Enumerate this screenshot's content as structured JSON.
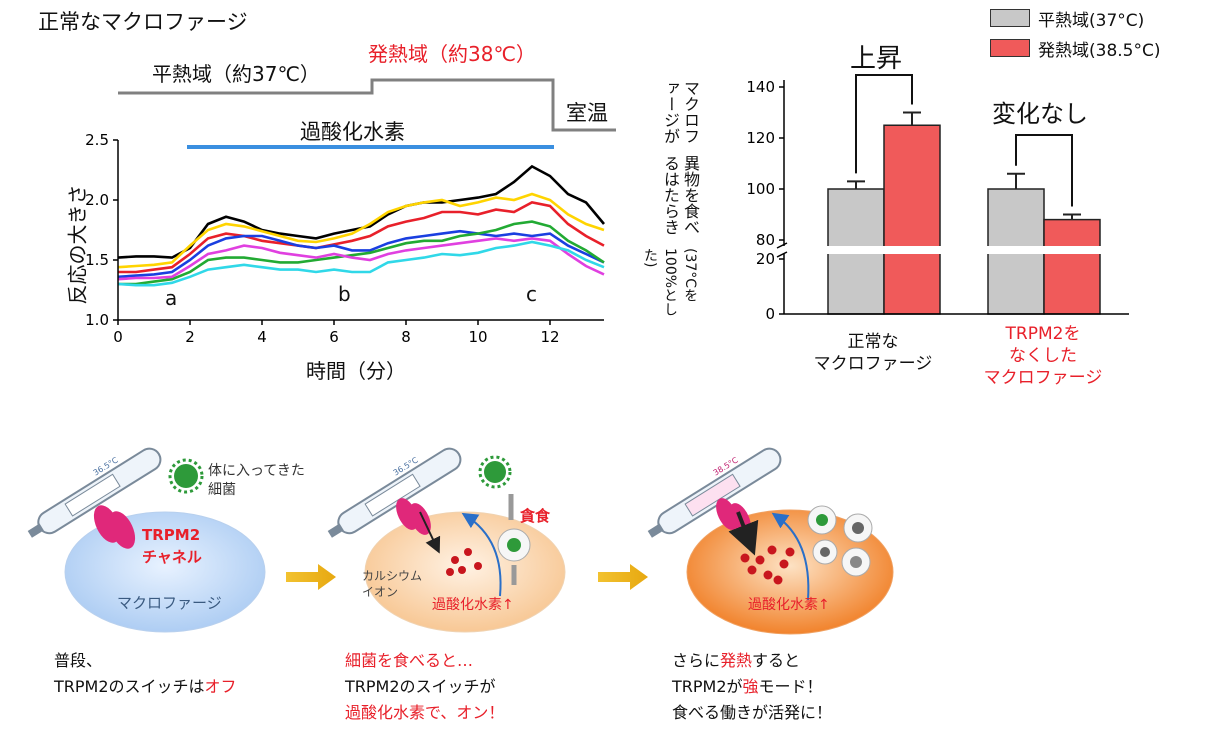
{
  "colors": {
    "gray_bar": "#c8c8c8",
    "red_bar": "#f05a5a",
    "accent_red": "#e8202a",
    "h2o2_bar": "#3a8fe0",
    "protocol_line": "#808080"
  },
  "line_chart": {
    "title": "正常なマクロファージ",
    "protocol": {
      "normal": "平熱域（約37℃）",
      "fever": "発熱域（約38℃）",
      "room": "室温",
      "h2o2": "過酸化水素"
    },
    "markers": [
      "a",
      "b",
      "c"
    ],
    "ylabel": "反応の大きさ",
    "xlabel": "時間（分）",
    "xticks": [
      "0",
      "2",
      "4",
      "6",
      "8",
      "10",
      "12"
    ],
    "yticks": [
      "1.0",
      "1.5",
      "2.0",
      "2.5"
    ]
  },
  "bar_chart": {
    "legend": [
      {
        "label": "平熱域(37°C)",
        "color": "#c8c8c8"
      },
      {
        "label": "発熱域(38.5°C)",
        "color": "#f05a5a"
      }
    ],
    "ylabel_line1": "マクロファージが",
    "ylabel_line2": "異物を食べるはたらき",
    "ylabel_line3": "(37°Cを100%とした)",
    "yticks": [
      "0",
      "20",
      "80",
      "100",
      "120",
      "140"
    ],
    "annot_up": "上昇",
    "annot_nochange": "変化なし",
    "cat1_line1": "正常な",
    "cat1_line2": "マクロファージ",
    "cat2_line1": "TRPM2を",
    "cat2_line2": "なくした",
    "cat2_line3": "マクロファージ"
  },
  "chart_data": [
    {
      "type": "line",
      "title": "正常なマクロファージ",
      "xlabel": "時間（分）",
      "ylabel": "反応の大きさ",
      "xlim": [
        0,
        13.5
      ],
      "ylim": [
        1.0,
        2.5
      ],
      "x": [
        0,
        0.5,
        1,
        1.5,
        2,
        2.5,
        3,
        3.5,
        4,
        4.5,
        5,
        5.5,
        6,
        6.5,
        7,
        7.5,
        8,
        8.5,
        9,
        9.5,
        10,
        10.5,
        11,
        11.5,
        12,
        12.5,
        13,
        13.5
      ],
      "series": [
        {
          "color": "#000000",
          "values": [
            1.52,
            1.53,
            1.53,
            1.52,
            1.6,
            1.8,
            1.86,
            1.82,
            1.75,
            1.72,
            1.7,
            1.68,
            1.72,
            1.75,
            1.78,
            1.88,
            1.95,
            1.98,
            1.98,
            2.0,
            2.02,
            2.05,
            2.15,
            2.28,
            2.2,
            2.05,
            1.98,
            1.8
          ]
        },
        {
          "color": "#ffd400",
          "values": [
            1.44,
            1.45,
            1.46,
            1.48,
            1.62,
            1.75,
            1.8,
            1.78,
            1.74,
            1.7,
            1.66,
            1.65,
            1.68,
            1.72,
            1.8,
            1.9,
            1.95,
            1.98,
            2.0,
            1.95,
            1.98,
            2.02,
            2.0,
            2.05,
            2.0,
            1.88,
            1.8,
            1.75
          ]
        },
        {
          "color": "#e8202a",
          "values": [
            1.4,
            1.4,
            1.42,
            1.44,
            1.55,
            1.68,
            1.72,
            1.7,
            1.66,
            1.64,
            1.62,
            1.6,
            1.63,
            1.66,
            1.7,
            1.78,
            1.82,
            1.85,
            1.9,
            1.9,
            1.88,
            1.92,
            1.9,
            1.98,
            1.95,
            1.8,
            1.7,
            1.62
          ]
        },
        {
          "color": "#1a3fe0",
          "values": [
            1.36,
            1.37,
            1.38,
            1.4,
            1.5,
            1.62,
            1.68,
            1.7,
            1.7,
            1.66,
            1.62,
            1.6,
            1.62,
            1.58,
            1.58,
            1.64,
            1.68,
            1.7,
            1.72,
            1.74,
            1.72,
            1.7,
            1.72,
            1.7,
            1.72,
            1.62,
            1.55,
            1.48
          ]
        },
        {
          "color": "#22aa33",
          "values": [
            1.3,
            1.3,
            1.32,
            1.34,
            1.4,
            1.5,
            1.52,
            1.52,
            1.5,
            1.48,
            1.48,
            1.5,
            1.52,
            1.54,
            1.56,
            1.6,
            1.64,
            1.66,
            1.66,
            1.7,
            1.72,
            1.75,
            1.8,
            1.82,
            1.78,
            1.66,
            1.58,
            1.48
          ]
        },
        {
          "color": "#e040e0",
          "values": [
            1.34,
            1.35,
            1.35,
            1.36,
            1.45,
            1.55,
            1.58,
            1.62,
            1.6,
            1.56,
            1.54,
            1.52,
            1.55,
            1.52,
            1.5,
            1.55,
            1.58,
            1.6,
            1.62,
            1.64,
            1.66,
            1.68,
            1.66,
            1.68,
            1.66,
            1.55,
            1.45,
            1.38
          ]
        },
        {
          "color": "#30d8e8",
          "values": [
            1.3,
            1.29,
            1.29,
            1.31,
            1.36,
            1.42,
            1.44,
            1.46,
            1.44,
            1.42,
            1.42,
            1.4,
            1.42,
            1.4,
            1.4,
            1.48,
            1.5,
            1.52,
            1.55,
            1.54,
            1.56,
            1.6,
            1.62,
            1.65,
            1.62,
            1.58,
            1.5,
            1.44
          ]
        }
      ]
    },
    {
      "type": "bar",
      "categories": [
        "正常な マクロファージ",
        "TRPM2を なくした マクロファージ"
      ],
      "ylabel": "マクロファージが 異物を食べるはたらき (37°Cを100%とした)",
      "ylim": [
        0,
        140
      ],
      "axis_break": [
        20,
        80
      ],
      "series": [
        {
          "name": "平熱域(37°C)",
          "values": [
            100,
            100
          ],
          "errors": [
            3,
            6
          ]
        },
        {
          "name": "発熱域(38.5°C)",
          "values": [
            125,
            88
          ],
          "errors": [
            5,
            2
          ]
        }
      ]
    }
  ],
  "diagram": {
    "panel1": {
      "thermometer": "36.5°C",
      "bacteria_note_line1": "体に入ってきた",
      "bacteria_note_line2": "細菌",
      "channel_line1": "TRPM2",
      "channel_line2": "チャネル",
      "cell": "マクロファージ",
      "caption_line1": "普段、",
      "caption_line2_pre": "TRPM2のスイッチは",
      "caption_line2_red": "オフ"
    },
    "panel2": {
      "thermometer": "36.5°C",
      "phago": "貪食",
      "calcium_line1": "カルシウム",
      "calcium_line2": "イオン",
      "h2o2": "過酸化水素↑",
      "caption_line1": "細菌を食べると…",
      "caption_line2": "TRPM2のスイッチが",
      "caption_line3": "過酸化水素で、オン！"
    },
    "panel3": {
      "thermometer": "38.5°C",
      "h2o2": "過酸化水素↑",
      "caption_line1_pre": "さらに",
      "caption_line1_red": "発熱",
      "caption_line1_post": "すると",
      "caption_line2_pre": "TRPM2が",
      "caption_line2_red": "強",
      "caption_line2_post": "モード！",
      "caption_line3": "食べる働きが活発に！"
    }
  }
}
